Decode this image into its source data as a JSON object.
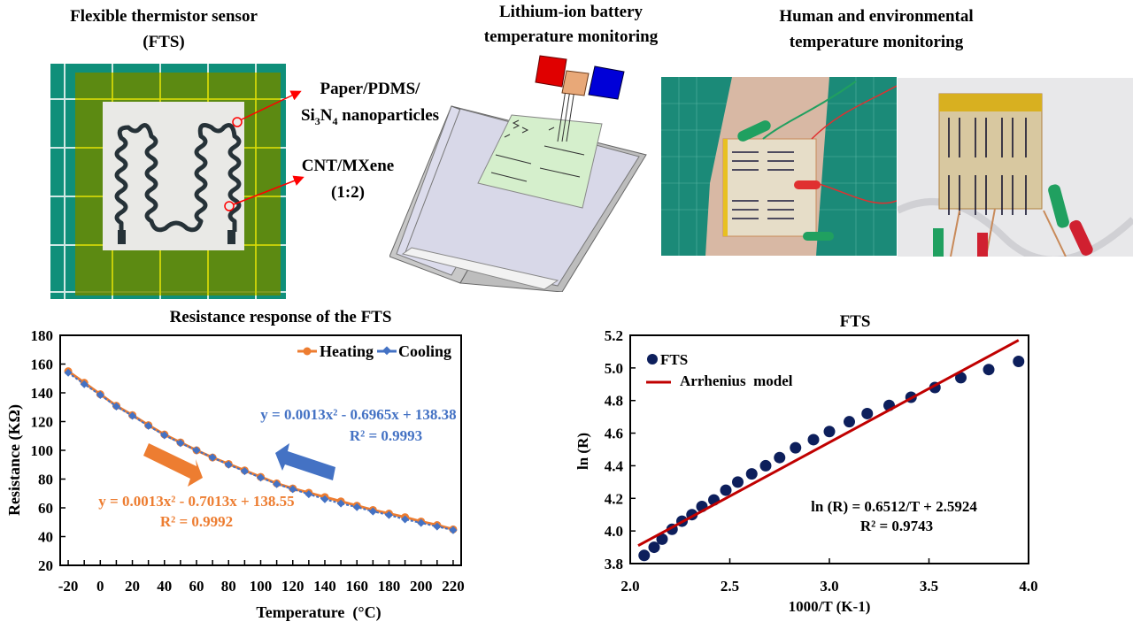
{
  "panels": {
    "fts": {
      "title_line1": "Flexible thermistor sensor",
      "title_line2": "(FTS)",
      "label_substrate_line1": "Paper/PDMS/",
      "label_substrate_si": "Si",
      "label_substrate_3": "3",
      "label_substrate_n": "N",
      "label_substrate_4": "4",
      "label_substrate_rest": " nanoparticles",
      "label_ink_line1": "CNT/MXene",
      "label_ink_line2": "(1:2)"
    },
    "battery": {
      "title_line1": "Lithium-ion battery",
      "title_line2": "temperature monitoring"
    },
    "human": {
      "title_line1": "Human and environmental",
      "title_line2": "temperature monitoring"
    }
  },
  "colors": {
    "heating": "#ED7D31",
    "cooling": "#4472C4",
    "fts_points": "#0D1F5C",
    "arrhenius": "#C00000"
  },
  "chart_data": [
    {
      "type": "line",
      "title": "Resistance response of the FTS",
      "xlabel": "Temperature  (°C)",
      "ylabel": "Resistance (KΩ)",
      "xlim": [
        -25,
        225
      ],
      "ylim": [
        20,
        180
      ],
      "xticks": [
        -20,
        0,
        20,
        40,
        60,
        80,
        100,
        120,
        140,
        160,
        180,
        200,
        220
      ],
      "yticks": [
        20,
        40,
        60,
        80,
        100,
        120,
        140,
        160,
        180
      ],
      "grid": false,
      "legend": "top-right",
      "x": [
        -20,
        -10,
        0,
        10,
        20,
        30,
        40,
        50,
        60,
        70,
        80,
        90,
        100,
        110,
        120,
        130,
        140,
        150,
        160,
        170,
        180,
        190,
        200,
        210,
        220
      ],
      "series": [
        {
          "name": "Heating",
          "marker": "circle",
          "values": [
            155,
            147,
            139,
            131,
            124.5,
            117.5,
            111,
            105.5,
            100,
            95,
            90.5,
            86,
            81.5,
            77,
            73.5,
            70.5,
            67.5,
            64.5,
            61.5,
            58.5,
            56,
            53.5,
            50.5,
            48,
            45
          ]
        },
        {
          "name": "Cooling",
          "marker": "diamond",
          "values": [
            154,
            146,
            138.5,
            130.5,
            124,
            117,
            110.5,
            105,
            100,
            95,
            90,
            85.5,
            81,
            76.5,
            73,
            69.5,
            66,
            63,
            60.5,
            57.5,
            55,
            52,
            49.5,
            47,
            44.5
          ]
        }
      ],
      "annotations": {
        "cooling_fit": "y = 0.0013x² - 0.6965x + 138.38",
        "cooling_r2": "R² = 0.9993",
        "heating_fit": "y = 0.0013x² - 0.7013x + 138.55",
        "heating_r2": "R² = 0.9992"
      }
    },
    {
      "type": "scatter",
      "title": "FTS",
      "xlabel": "1000/T (K-1)",
      "ylabel": "ln (R)",
      "xlim": [
        2.0,
        4.0
      ],
      "ylim": [
        3.8,
        5.2
      ],
      "xticks": [
        "2.0",
        "2.5",
        "3.0",
        "3.5",
        "4.0"
      ],
      "yticks": [
        "3.8",
        "4.0",
        "4.2",
        "4.4",
        "4.6",
        "4.8",
        "5.0",
        "5.2"
      ],
      "grid": false,
      "legend": "top-left",
      "series": [
        {
          "name": "FTS",
          "marker": "circle",
          "x": [
            2.07,
            2.12,
            2.16,
            2.21,
            2.26,
            2.31,
            2.36,
            2.42,
            2.48,
            2.54,
            2.61,
            2.68,
            2.75,
            2.83,
            2.92,
            3.0,
            3.1,
            3.19,
            3.3,
            3.41,
            3.53,
            3.66,
            3.8,
            3.95
          ],
          "y": [
            3.85,
            3.9,
            3.95,
            4.01,
            4.06,
            4.1,
            4.15,
            4.19,
            4.25,
            4.3,
            4.35,
            4.4,
            4.45,
            4.51,
            4.56,
            4.61,
            4.67,
            4.72,
            4.77,
            4.82,
            4.88,
            4.94,
            4.99,
            5.04
          ]
        },
        {
          "name": "Arrhenius  model",
          "type": "line",
          "x": [
            2.04,
            3.95
          ],
          "y": [
            3.91,
            5.17
          ]
        }
      ],
      "annotations": {
        "fit": "ln (R) = 0.6512/T + 2.5924",
        "r2": "R² = 0.9743"
      }
    }
  ]
}
